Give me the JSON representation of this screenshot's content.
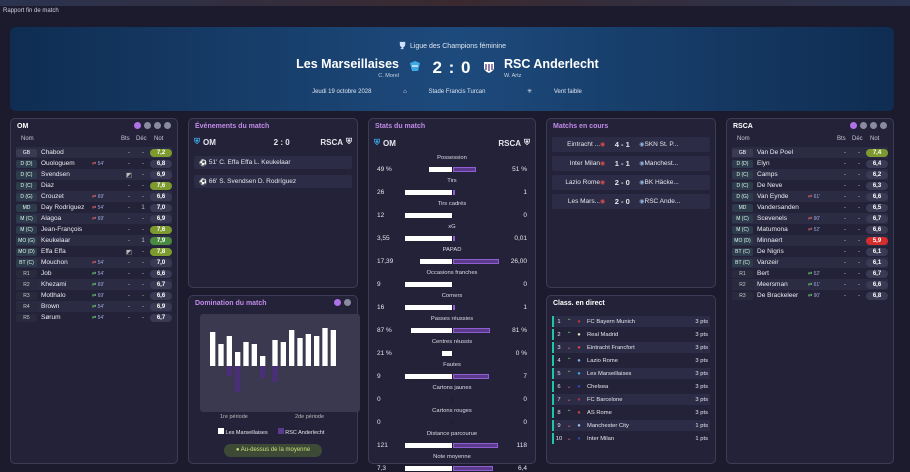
{
  "breadcrumb": "Rapport fin de match",
  "competition": "Ligue des Champions féminine",
  "home": {
    "name": "Les Marseillaises",
    "manager": "C. Morel"
  },
  "away": {
    "name": "RSC Anderlecht",
    "manager": "W. Artz"
  },
  "score": "2 : 0",
  "date": "Jeudi 19 octobre 2028",
  "stadium": "Stade Francis Turcan",
  "weather": "Vent faible",
  "colors": {
    "accent": "#c28be8",
    "panel": "#232238",
    "green": "#4a8a3e",
    "red": "#d32d2d"
  },
  "om_panel": {
    "title": "OM",
    "h_name": "Nom",
    "h_bts": "Bts",
    "h_dec": "Déc",
    "h_not": "Not",
    "players": [
      {
        "pos": "GB",
        "name": "Chabod",
        "ev": "",
        "bts": "-",
        "dec": "-",
        "rat": "7,2",
        "c": "yg"
      },
      {
        "pos": "D (D)",
        "name": "Ouologuem",
        "ev": "54'",
        "bts": "-",
        "dec": "-",
        "rat": "6,8",
        "c": ""
      },
      {
        "pos": "D (C)",
        "name": "Svendsen",
        "ev": "",
        "bts": "◩",
        "dec": "-",
        "rat": "6,9",
        "c": ""
      },
      {
        "pos": "D (C)",
        "name": "Diaz",
        "ev": "",
        "bts": "-",
        "dec": "-",
        "rat": "7,6",
        "c": "yg"
      },
      {
        "pos": "D (G)",
        "name": "Crouzet",
        "ev": "69'",
        "bts": "-",
        "dec": "-",
        "rat": "6,6",
        "c": ""
      },
      {
        "pos": "MD",
        "name": "Day Rodríguez",
        "ev": "54'",
        "bts": "-",
        "dec": "1",
        "rat": "7,0",
        "c": ""
      },
      {
        "pos": "M (C)",
        "name": "Alagoa",
        "ev": "69'",
        "bts": "-",
        "dec": "-",
        "rat": "6,9",
        "c": ""
      },
      {
        "pos": "M (C)",
        "name": "Jean-François",
        "ev": "",
        "bts": "-",
        "dec": "-",
        "rat": "7,6",
        "c": "yg"
      },
      {
        "pos": "MO (G)",
        "name": "Keukelaar",
        "ev": "",
        "bts": "-",
        "dec": "1",
        "rat": "7,9",
        "c": "gr"
      },
      {
        "pos": "MO (D)",
        "name": "Effa Effa",
        "ev": "",
        "bts": "◩",
        "dec": "-",
        "rat": "7,8",
        "c": "yg"
      },
      {
        "pos": "BT (C)",
        "name": "Mouchon",
        "ev": "54'",
        "bts": "-",
        "dec": "-",
        "rat": "7,0",
        "c": ""
      },
      {
        "pos": "R1",
        "name": "Job",
        "ev": "54'",
        "bts": "-",
        "dec": "-",
        "rat": "6,6",
        "c": ""
      },
      {
        "pos": "R2",
        "name": "Khezami",
        "ev": "69'",
        "bts": "-",
        "dec": "-",
        "rat": "6,7",
        "c": ""
      },
      {
        "pos": "R3",
        "name": "Motlhalo",
        "ev": "69'",
        "bts": "-",
        "dec": "-",
        "rat": "6,6",
        "c": ""
      },
      {
        "pos": "R4",
        "name": "Brown",
        "ev": "54'",
        "bts": "-",
        "dec": "-",
        "rat": "6,9",
        "c": ""
      },
      {
        "pos": "R5",
        "name": "Sørum",
        "ev": "54'",
        "bts": "-",
        "dec": "-",
        "rat": "6,7",
        "c": ""
      }
    ]
  },
  "rsca_panel": {
    "title": "RSCA",
    "h_name": "Nom",
    "h_bts": "Bts",
    "h_dec": "Déc",
    "h_not": "Not",
    "players": [
      {
        "pos": "GB",
        "name": "Van De Poel",
        "ev": "",
        "bts": "-",
        "dec": "-",
        "rat": "7,4",
        "c": "yg"
      },
      {
        "pos": "D (D)",
        "name": "Elyn",
        "ev": "",
        "bts": "-",
        "dec": "-",
        "rat": "6,4",
        "c": ""
      },
      {
        "pos": "D (C)",
        "name": "Camps",
        "ev": "",
        "bts": "-",
        "dec": "-",
        "rat": "6,2",
        "c": ""
      },
      {
        "pos": "D (C)",
        "name": "De Neve",
        "ev": "",
        "bts": "-",
        "dec": "-",
        "rat": "6,3",
        "c": ""
      },
      {
        "pos": "D (G)",
        "name": "Van Eynde",
        "ev": "61'",
        "bts": "-",
        "dec": "-",
        "rat": "6,6",
        "c": ""
      },
      {
        "pos": "MD",
        "name": "Vandersanden",
        "ev": "",
        "bts": "-",
        "dec": "-",
        "rat": "6,5",
        "c": ""
      },
      {
        "pos": "M (C)",
        "name": "Scevenels",
        "ev": "90'",
        "bts": "-",
        "dec": "-",
        "rat": "6,7",
        "c": ""
      },
      {
        "pos": "M (C)",
        "name": "Matumona",
        "ev": "52'",
        "bts": "-",
        "dec": "-",
        "rat": "6,6",
        "c": ""
      },
      {
        "pos": "MO (D)",
        "name": "Minnaert",
        "ev": "",
        "bts": "-",
        "dec": "-",
        "rat": "5,9",
        "c": "rd"
      },
      {
        "pos": "BT (C)",
        "name": "De Nigris",
        "ev": "",
        "bts": "-",
        "dec": "-",
        "rat": "6,1",
        "c": ""
      },
      {
        "pos": "BT (C)",
        "name": "Vanzeir",
        "ev": "",
        "bts": "-",
        "dec": "-",
        "rat": "6,1",
        "c": ""
      },
      {
        "pos": "R1",
        "name": "Bert",
        "ev": "52'",
        "bts": "-",
        "dec": "-",
        "rat": "6,7",
        "c": ""
      },
      {
        "pos": "R2",
        "name": "Meersman",
        "ev": "61'",
        "bts": "-",
        "dec": "-",
        "rat": "6,6",
        "c": ""
      },
      {
        "pos": "R3",
        "name": "De Brackeleer",
        "ev": "90'",
        "bts": "-",
        "dec": "-",
        "rat": "6,8",
        "c": ""
      }
    ]
  },
  "events": {
    "title": "Événements du match",
    "home": "OM",
    "away": "RSCA",
    "score": "2 : 0",
    "items": [
      {
        "min": "51'",
        "text": "C. Effa Effa",
        "assist": "L. Keukelaar"
      },
      {
        "min": "66'",
        "text": "S. Svendsen",
        "assist": "D. Rodríguez"
      }
    ]
  },
  "domination": {
    "title": "Domination du match",
    "p1": "1re période",
    "p2": "2de période",
    "legend_home": "Les Marseillaises",
    "legend_away": "RSC Anderlecht",
    "button": "Au-dessus de la moyenne",
    "home": [
      34,
      22,
      30,
      14,
      24,
      22,
      10,
      26,
      24,
      36,
      28,
      32,
      30,
      38,
      36
    ],
    "away": [
      0,
      0,
      10,
      26,
      0,
      0,
      12,
      16,
      0,
      0,
      0,
      0,
      0,
      0,
      0
    ]
  },
  "stats": {
    "title": "Stats du match",
    "home": "OM",
    "away": "RSCA",
    "items": [
      {
        "label": "Possession",
        "l": "49 %",
        "r": "51 %",
        "lp": 49,
        "rp": 51
      },
      {
        "label": "Tirs",
        "l": "26",
        "r": "1",
        "lp": 100,
        "rp": 4
      },
      {
        "label": "Tirs cadrés",
        "l": "12",
        "r": "0",
        "lp": 100,
        "rp": 0
      },
      {
        "label": "xG",
        "l": "3,55",
        "r": "0,01",
        "lp": 100,
        "rp": 1
      },
      {
        "label": "PAPAD",
        "l": "17,39",
        "r": "26,00",
        "lp": 67,
        "rp": 100
      },
      {
        "label": "Occasions franches",
        "l": "9",
        "r": "0",
        "lp": 100,
        "rp": 0
      },
      {
        "label": "Corners",
        "l": "16",
        "r": "1",
        "lp": 100,
        "rp": 6
      },
      {
        "label": "Passes réussies",
        "l": "87 %",
        "r": "81 %",
        "lp": 87,
        "rp": 81
      },
      {
        "label": "Centres réussis",
        "l": "21 %",
        "r": "0 %",
        "lp": 21,
        "rp": 0
      },
      {
        "label": "Fautes",
        "l": "9",
        "r": "7",
        "lp": 100,
        "rp": 78
      },
      {
        "label": "Cartons jaunes",
        "l": "0",
        "r": "0",
        "lp": 0,
        "rp": 0
      },
      {
        "label": "Cartons rouges",
        "l": "0",
        "r": "0",
        "lp": 0,
        "rp": 0
      },
      {
        "label": "Distance parcourue",
        "l": "121",
        "r": "118",
        "lp": 100,
        "rp": 97
      },
      {
        "label": "Note moyenne",
        "l": "7,3",
        "r": "6,4",
        "lp": 100,
        "rp": 87
      }
    ]
  },
  "live": {
    "title": "Matchs en cours",
    "items": [
      {
        "h": "Eintracht ...",
        "s": "4 - 1",
        "a": "SKN St. P..."
      },
      {
        "h": "Inter Milan",
        "s": "1 - 1",
        "a": "Manchest..."
      },
      {
        "h": "Lazio Rome",
        "s": "2 - 0",
        "a": "BK Häcke..."
      },
      {
        "h": "Les Mars...",
        "s": "2 - 0",
        "a": "RSC Ande..."
      }
    ]
  },
  "table": {
    "title": "Class. en direct",
    "items": [
      {
        "n": "1",
        "d": "up",
        "t": "FC Bayern Munich",
        "p": "3 pts"
      },
      {
        "n": "2",
        "d": "up",
        "t": "Real Madrid",
        "p": "3 pts"
      },
      {
        "n": "3",
        "d": "dn",
        "t": "Eintracht Francfort",
        "p": "3 pts"
      },
      {
        "n": "4",
        "d": "up",
        "t": "Lazio Rome",
        "p": "3 pts"
      },
      {
        "n": "5",
        "d": "up",
        "t": "Les Marseillaises",
        "p": "3 pts"
      },
      {
        "n": "6",
        "d": "dn",
        "t": "Chelsea",
        "p": "3 pts"
      },
      {
        "n": "7",
        "d": "dn",
        "t": "FC Barcelone",
        "p": "3 pts"
      },
      {
        "n": "8",
        "d": "up",
        "t": "AS Rome",
        "p": "3 pts"
      },
      {
        "n": "9",
        "d": "dn",
        "t": "Manchester City",
        "p": "1 pts"
      },
      {
        "n": "10",
        "d": "dn",
        "t": "Inter Milan",
        "p": "1 pts"
      }
    ]
  }
}
